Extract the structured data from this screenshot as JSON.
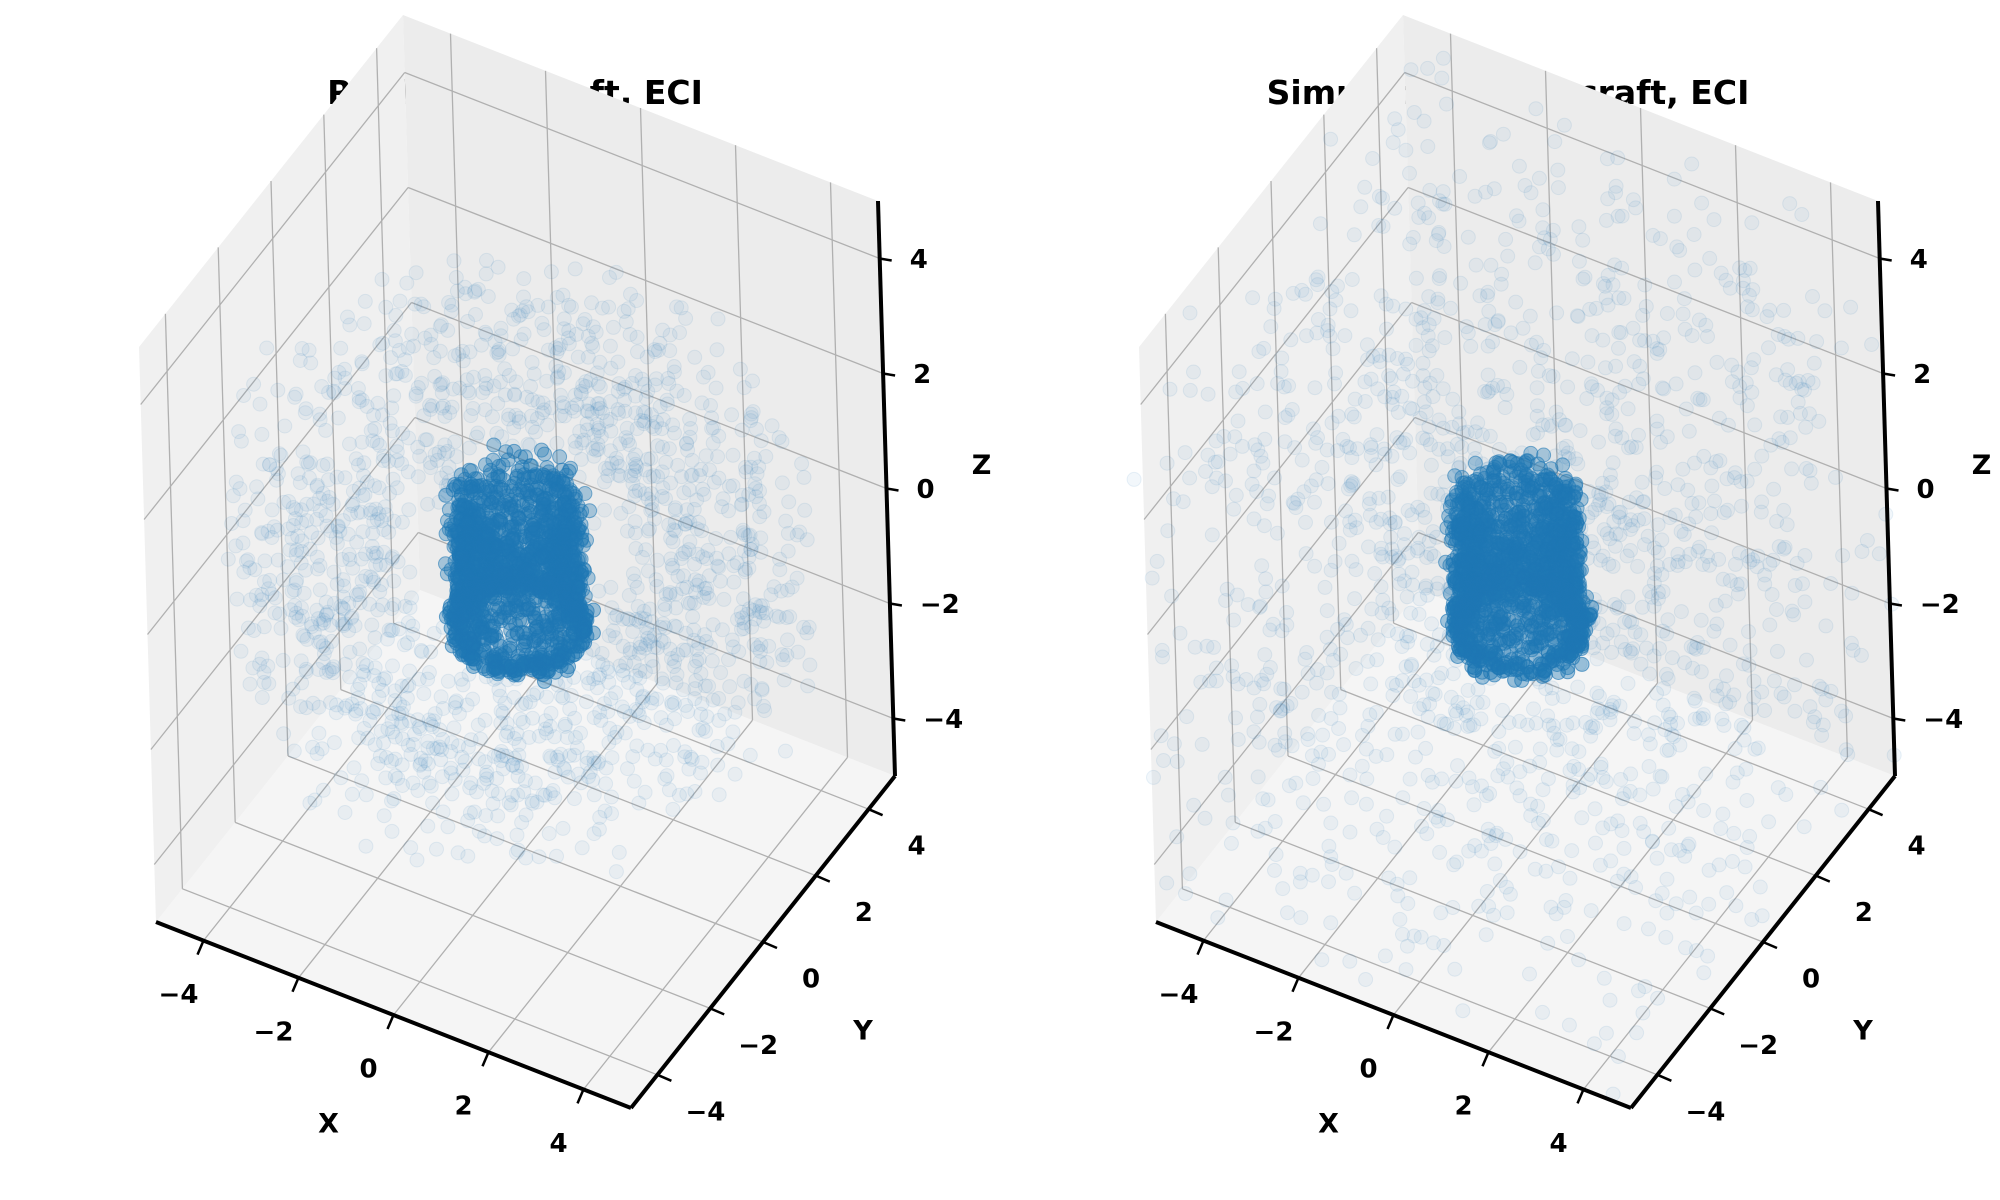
{
  "chart_data": [
    {
      "type": "scatter",
      "projection": "3d",
      "title": "Real Spacecraft, ECI",
      "xlabel": "X",
      "ylabel": "Y",
      "zlabel": "Z",
      "xlim": [
        -5,
        5
      ],
      "ylim": [
        -5,
        5
      ],
      "zlim": [
        -5,
        5
      ],
      "xticks": [
        "−4",
        "−2",
        "0",
        "2",
        "4"
      ],
      "yticks": [
        "−4",
        "−2",
        "0",
        "2",
        "4"
      ],
      "zticks": [
        "−4",
        "−2",
        "0",
        "2",
        "4"
      ],
      "grid": true,
      "marker_color": "#1f77b4",
      "marker_alpha": 0.05,
      "distribution": {
        "core": "dense ring of radius ≈ 1 around the origin, z ≈ -1 to 1",
        "halo": "sparse elongated orbit band out to radius ≈ 5"
      }
    },
    {
      "type": "scatter",
      "projection": "3d",
      "title": "Simulated Spacecraft, ECI",
      "xlabel": "X",
      "ylabel": "Y",
      "zlabel": "Z",
      "xlim": [
        -5,
        5
      ],
      "ylim": [
        -5,
        5
      ],
      "zlim": [
        -5,
        5
      ],
      "xticks": [
        "−4",
        "−2",
        "0",
        "2",
        "4"
      ],
      "yticks": [
        "−4",
        "−2",
        "0",
        "2",
        "4"
      ],
      "zticks": [
        "−4",
        "−2",
        "0",
        "2",
        "4"
      ],
      "grid": true,
      "marker_color": "#1f77b4",
      "marker_alpha": 0.05,
      "distribution": {
        "core": "dense ring of radius ≈ 1 around the origin, z ≈ -1 to 1",
        "halo": "sparse near-uniform cloud filling the cube out to ±5"
      }
    }
  ]
}
